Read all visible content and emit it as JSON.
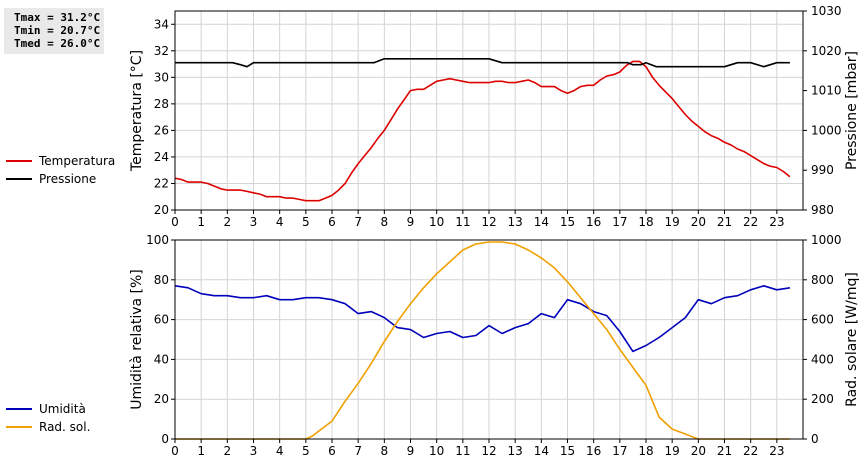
{
  "stats": [
    "Tmax = 31.2°C",
    "Tmin = 20.7°C",
    "Tmed = 26.0°C"
  ],
  "colors": {
    "temperature": "#dd0000",
    "pressure": "#000000",
    "humidity": "#0000bb",
    "radiation": "#f0a000",
    "grid": "#d4d4d4"
  },
  "chart_data": [
    {
      "type": "line",
      "grid": true,
      "legend_position": "left",
      "x_ticks": [
        0,
        1,
        2,
        3,
        4,
        5,
        6,
        7,
        8,
        9,
        10,
        11,
        12,
        13,
        14,
        15,
        16,
        17,
        18,
        19,
        20,
        21,
        22,
        23
      ],
      "xlim": [
        0,
        24
      ],
      "y_left": {
        "label": "Temperatura [°C]",
        "lim": [
          20,
          35
        ],
        "ticks": [
          20,
          22,
          24,
          26,
          28,
          30,
          32,
          34
        ]
      },
      "y_right": {
        "label": "Pressione [mbar]",
        "lim": [
          980,
          1030
        ],
        "ticks": [
          980,
          990,
          1000,
          1010,
          1020,
          1030
        ]
      },
      "series": [
        {
          "name": "Temperatura",
          "axis": "left",
          "x": [
            0,
            0.25,
            0.5,
            0.75,
            1,
            1.25,
            1.5,
            1.75,
            2,
            2.25,
            2.5,
            2.75,
            3,
            3.25,
            3.5,
            3.75,
            4,
            4.25,
            4.5,
            4.75,
            5,
            5.25,
            5.5,
            5.75,
            6,
            6.25,
            6.5,
            6.75,
            7,
            7.25,
            7.5,
            7.75,
            8,
            8.25,
            8.5,
            8.75,
            9,
            9.25,
            9.5,
            9.75,
            10,
            10.25,
            10.5,
            10.75,
            11,
            11.25,
            11.5,
            11.75,
            12,
            12.25,
            12.5,
            12.75,
            13,
            13.25,
            13.5,
            13.75,
            14,
            14.25,
            14.5,
            14.75,
            15,
            15.25,
            15.5,
            15.75,
            16,
            16.25,
            16.5,
            16.75,
            17,
            17.25,
            17.5,
            17.75,
            18,
            18.25,
            18.5,
            18.75,
            19,
            19.25,
            19.5,
            19.75,
            20,
            20.25,
            20.5,
            20.75,
            21,
            21.25,
            21.5,
            21.75,
            22,
            22.25,
            22.5,
            22.75,
            23,
            23.25,
            23.5
          ],
          "values": [
            22.4,
            22.3,
            22.1,
            22.1,
            22.1,
            22.0,
            21.8,
            21.6,
            21.5,
            21.5,
            21.5,
            21.4,
            21.3,
            21.2,
            21.0,
            21.0,
            21.0,
            20.9,
            20.9,
            20.8,
            20.7,
            20.7,
            20.7,
            20.9,
            21.1,
            21.5,
            22.0,
            22.8,
            23.5,
            24.1,
            24.7,
            25.4,
            26.0,
            26.8,
            27.6,
            28.3,
            29.0,
            29.1,
            29.1,
            29.4,
            29.7,
            29.8,
            29.9,
            29.8,
            29.7,
            29.6,
            29.6,
            29.6,
            29.6,
            29.7,
            29.7,
            29.6,
            29.6,
            29.7,
            29.8,
            29.6,
            29.3,
            29.3,
            29.3,
            29.0,
            28.8,
            29.0,
            29.3,
            29.4,
            29.4,
            29.8,
            30.1,
            30.2,
            30.4,
            30.9,
            31.2,
            31.2,
            30.8,
            30.0,
            29.4,
            28.9,
            28.4,
            27.8,
            27.2,
            26.7,
            26.3,
            25.9,
            25.6,
            25.4,
            25.1,
            24.9,
            24.6,
            24.4,
            24.1,
            23.8,
            23.5,
            23.3,
            23.2,
            22.9,
            22.5
          ]
        },
        {
          "name": "Pressione",
          "axis": "right",
          "x": [
            0,
            2.2,
            2.5,
            2.75,
            3.0,
            7.6,
            8.0,
            12.0,
            12.5,
            17.3,
            17.5,
            17.8,
            18.0,
            18.4,
            21.0,
            21.5,
            22.0,
            22.5,
            22.75,
            23.0,
            23.5
          ],
          "values": [
            1017,
            1017,
            1016.5,
            1016,
            1017,
            1017,
            1018,
            1018,
            1017,
            1017,
            1016.5,
            1016.5,
            1017,
            1016,
            1016,
            1017,
            1017,
            1016,
            1016.5,
            1017,
            1017
          ]
        }
      ]
    },
    {
      "type": "line",
      "grid": true,
      "legend_position": "left",
      "x_ticks": [
        0,
        1,
        2,
        3,
        4,
        5,
        6,
        7,
        8,
        9,
        10,
        11,
        12,
        13,
        14,
        15,
        16,
        17,
        18,
        19,
        20,
        21,
        22,
        23
      ],
      "xlim": [
        0,
        24
      ],
      "y_left": {
        "label": "Umidità relativa [%]",
        "lim": [
          0,
          100
        ],
        "ticks": [
          0,
          20,
          40,
          60,
          80,
          100
        ]
      },
      "y_right": {
        "label": "Rad. solare [W/mq]",
        "lim": [
          0,
          1000
        ],
        "ticks": [
          0,
          200,
          400,
          600,
          800,
          1000
        ]
      },
      "series": [
        {
          "name": "Umidità",
          "axis": "left",
          "x": [
            0,
            0.5,
            1,
            1.5,
            2,
            2.5,
            3,
            3.5,
            4,
            4.5,
            5,
            5.5,
            6,
            6.5,
            7,
            7.5,
            8,
            8.5,
            9,
            9.5,
            10,
            10.5,
            11,
            11.5,
            12,
            12.5,
            13,
            13.5,
            14,
            14.5,
            15,
            15.5,
            16,
            16.5,
            17,
            17.5,
            18,
            18.5,
            19,
            19.5,
            20,
            20.5,
            21,
            21.5,
            22,
            22.5,
            23,
            23.5
          ],
          "values": [
            77,
            76,
            73,
            72,
            72,
            71,
            71,
            72,
            70,
            70,
            71,
            71,
            70,
            68,
            63,
            64,
            61,
            56,
            55,
            51,
            53,
            54,
            51,
            52,
            57,
            53,
            56,
            58,
            63,
            61,
            70,
            68,
            64,
            62,
            54,
            44,
            47,
            51,
            56,
            61,
            70,
            68,
            71,
            72,
            75,
            77,
            75,
            76
          ]
        },
        {
          "name": "Rad. sol.",
          "axis": "right",
          "x": [
            0,
            1,
            2,
            3,
            4,
            5,
            5.25,
            5.5,
            6,
            6.5,
            7,
            7.5,
            8,
            8.5,
            9,
            9.5,
            10,
            10.5,
            11,
            11.5,
            12,
            12.5,
            13,
            13.5,
            14,
            14.5,
            15,
            15.5,
            16,
            16.5,
            17,
            17.5,
            18,
            18.5,
            19,
            19.5,
            20,
            20.5,
            21,
            22,
            23,
            23.5
          ],
          "values": [
            0,
            0,
            0,
            0,
            0,
            0,
            15,
            40,
            90,
            190,
            280,
            380,
            490,
            590,
            680,
            760,
            830,
            890,
            950,
            980,
            990,
            990,
            980,
            950,
            910,
            860,
            790,
            710,
            630,
            550,
            450,
            360,
            270,
            110,
            50,
            25,
            0,
            0,
            0,
            0,
            0,
            0
          ]
        }
      ]
    }
  ]
}
